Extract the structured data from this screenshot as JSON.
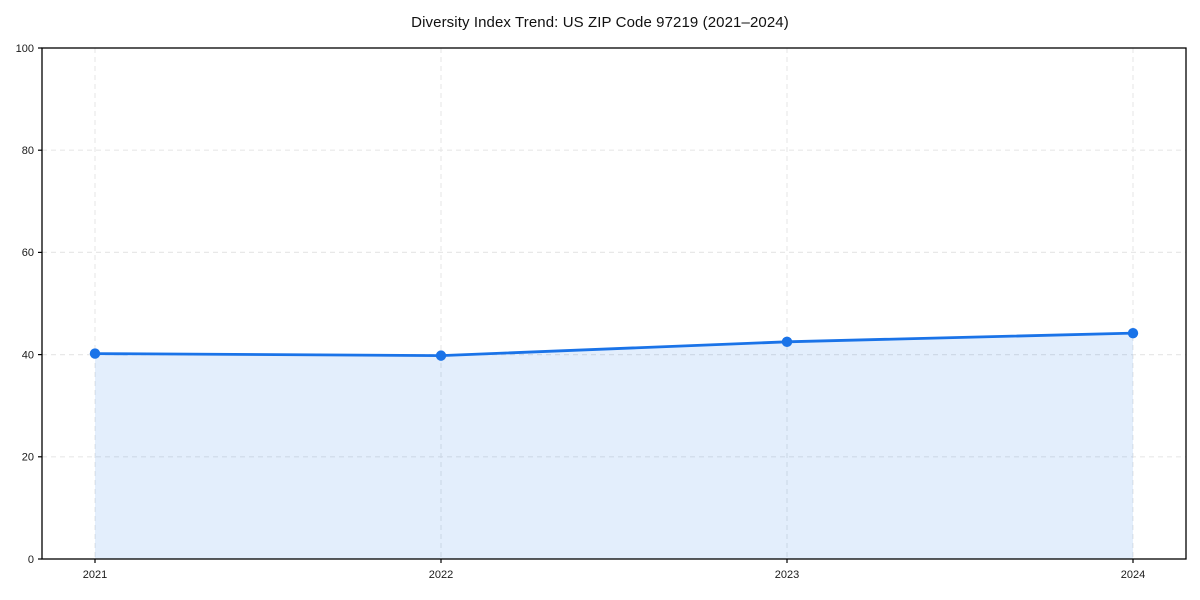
{
  "chart_data": {
    "type": "line",
    "title": "Diversity Index Trend: US ZIP Code 97219 (2021–2024)",
    "x": [
      "2021",
      "2022",
      "2023",
      "2024"
    ],
    "series": [
      {
        "name": "Diversity Index",
        "values": [
          40.2,
          39.8,
          42.5,
          44.2
        ]
      }
    ],
    "xlabel": "",
    "ylabel": "",
    "ylim": [
      0,
      100
    ],
    "yticks": [
      0,
      20,
      40,
      60,
      80,
      100
    ],
    "grid": "dashed-both-axes",
    "legend": "none",
    "area_fill": true,
    "markers": true,
    "colors": {
      "line": "#1a73e8",
      "marker": "#1a73e8",
      "area": "rgba(26,115,232,0.12)",
      "grid": "#e8e8e8",
      "spine": "#000000",
      "tick_text": "#1a1a1a",
      "background": "#ffffff"
    }
  }
}
